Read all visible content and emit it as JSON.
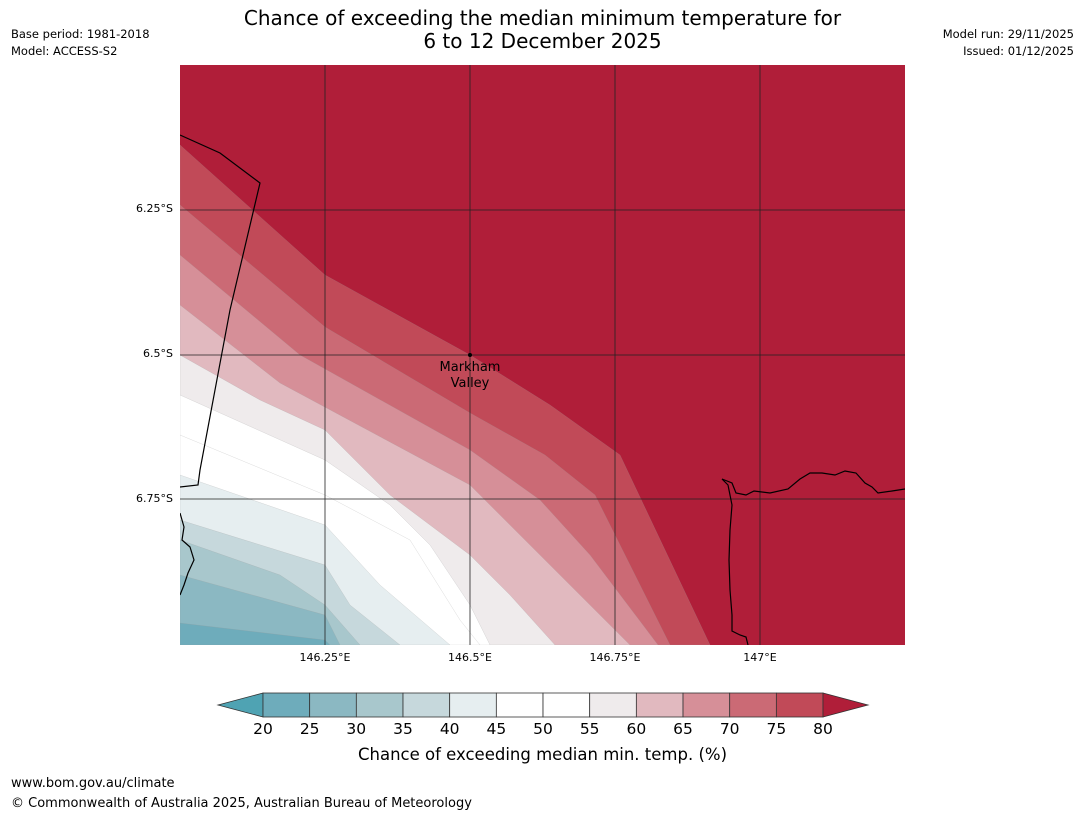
{
  "header": {
    "title_line1": "Chance of exceeding the median minimum temperature for",
    "title_line2": "6 to 12 December 2025",
    "base_period": "Base period: 1981-2018",
    "model": "Model: ACCESS-S2",
    "model_run": "Model run: 29/11/2025",
    "issued": "Issued: 01/12/2025"
  },
  "map": {
    "lat_labels": [
      "6.25°S",
      "6.5°S",
      "6.75°S"
    ],
    "lon_labels": [
      "146.25°E",
      "146.5°E",
      "146.75°E",
      "147°E"
    ],
    "place": {
      "name_line1": "Markham",
      "name_line2": "Valley",
      "lon": 146.5,
      "lat": -6.5
    }
  },
  "colorbar": {
    "ticks": [
      "20",
      "25",
      "30",
      "35",
      "40",
      "45",
      "50",
      "55",
      "60",
      "65",
      "70",
      "75",
      "80"
    ],
    "label": "Chance of exceeding median min. temp. (%)",
    "colors": {
      "lt20": "#4fa3b3",
      "20-25": "#6eacbb",
      "25-30": "#8bb8c2",
      "30-35": "#a8c7cc",
      "35-40": "#c6d8dc",
      "40-45": "#e6eef0",
      "45-50": "#ffffff",
      "50-55": "#ffffff",
      "55-60": "#efebec",
      "60-65": "#e1b9bf",
      "65-70": "#d68f98",
      "70-75": "#cb6a75",
      "75-80": "#c14a58",
      "gt80": "#b01e39"
    }
  },
  "footer": {
    "url": "www.bom.gov.au/climate",
    "copyright": "© Commonwealth of Australia 2025, Australian Bureau of Meteorology"
  }
}
